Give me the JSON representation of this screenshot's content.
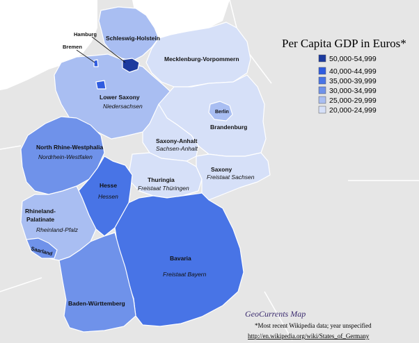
{
  "legend": {
    "title": "Per Capita GDP in Euros*",
    "items": [
      {
        "label": "50,000-54,999",
        "color": "#1c3a9e"
      },
      {
        "label": "40,000-44,999",
        "color": "#2f5ce0"
      },
      {
        "label": "35,000-39,999",
        "color": "#4874e6"
      },
      {
        "label": "30,000-34,999",
        "color": "#6f92ea"
      },
      {
        "label": "25,000-29,999",
        "color": "#a9bef2"
      },
      {
        "label": "20,000-24,999",
        "color": "#d6e0f8"
      }
    ]
  },
  "states": {
    "schleswig_holstein": {
      "name": "Schleswig-Holstein",
      "color": "#a9bef2"
    },
    "hamburg": {
      "name": "Hamburg",
      "color": "#1c3a9e"
    },
    "bremen": {
      "name": "Bremen",
      "color": "#2f5ce0"
    },
    "mecklenburg": {
      "name": "Mecklenburg-Vorpommern",
      "color": "#d6e0f8"
    },
    "lower_saxony": {
      "name": "Lower Saxony",
      "local": "Niedersachsen",
      "color": "#a9bef2"
    },
    "berlin": {
      "name": "Berlin",
      "color": "#a9bef2"
    },
    "brandenburg": {
      "name": "Brandenburg",
      "color": "#d6e0f8"
    },
    "saxony_anhalt": {
      "name": "Saxony-Anhalt",
      "local": "Sachsen-Anhalt",
      "color": "#d6e0f8"
    },
    "nrw": {
      "name": "North Rhine-Westphalia",
      "local": "Nordrhein-Westfalen",
      "color": "#6f92ea"
    },
    "thuringia": {
      "name": "Thuringia",
      "local": "Freistaat Thüringen",
      "color": "#d6e0f8"
    },
    "saxony": {
      "name": "Saxony",
      "local": "Freistaat Sachsen",
      "color": "#d6e0f8"
    },
    "hesse": {
      "name": "Hesse",
      "local": "Hessen",
      "color": "#4874e6"
    },
    "rhineland_palatinate": {
      "name_line1": "Rhineland-",
      "name_line2": "Palatinate",
      "local": "Rheinland-Pfalz",
      "color": "#a9bef2"
    },
    "saarland": {
      "name": "Saarland",
      "color": "#6f92ea"
    },
    "bavaria": {
      "name": "Bavaria",
      "local": "Freistaat Bayern",
      "color": "#4874e6"
    },
    "baden_wuerttemberg": {
      "name": "Baden-Württemberg",
      "color": "#6f92ea"
    }
  },
  "background": {
    "land": "#e6e6e6",
    "sea": "#ffffff",
    "border": "#ffffff"
  },
  "brand": "GeoCurrents Map",
  "footnote": "*Most recent Wikipedia data; year unspecified",
  "source_url": "http://en.wikipedia.org/wiki/States_of_Germany"
}
